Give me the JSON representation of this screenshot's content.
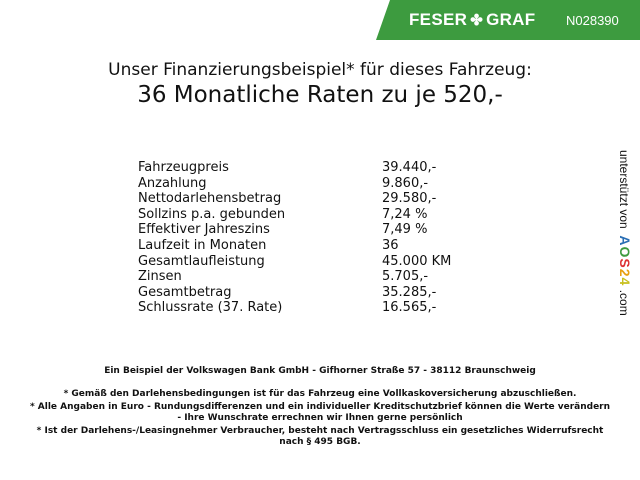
{
  "header": {
    "brand_left": "FESER",
    "brand_right": "GRAF",
    "brand_icon": "clover-icon",
    "vehicle_code": "N028390",
    "accent_color": "#3d9b3f"
  },
  "title": {
    "line1": "Unser Finanzierungsbeispiel* für dieses Fahrzeug:",
    "line2": "36 Monatliche Raten zu je 520,-"
  },
  "rows": [
    {
      "label": "Fahrzeugpreis",
      "value": "39.440,-"
    },
    {
      "label": "Anzahlung",
      "value": "9.860,-"
    },
    {
      "label": "Nettodarlehensbetrag",
      "value": "29.580,-"
    },
    {
      "label": "Sollzins p.a. gebunden",
      "value": "7,24 %"
    },
    {
      "label": "Effektiver Jahreszins",
      "value": "7,49 %"
    },
    {
      "label": "Laufzeit in Monaten",
      "value": "36"
    },
    {
      "label": "Gesamtlaufleistung",
      "value": "45.000 KM"
    },
    {
      "label": "Zinsen",
      "value": "5.705,-"
    },
    {
      "label": "Gesamtbetrag",
      "value": "35.285,-"
    },
    {
      "label": "Schlussrate (37. Rate)",
      "value": "16.565,-"
    }
  ],
  "side": {
    "prefix": "unterstützt von",
    "logo": "AOS24",
    ".com": ".com"
  },
  "footer": {
    "bank": "Ein Beispiel der Volkswagen Bank GmbH - Gifhorner Straße 57 - 38112 Braunschweig",
    "notes": [
      "* Gemäß den Darlehensbedingungen ist für das Fahrzeug eine Vollkaskoversicherung abzuschließen.",
      "* Alle Angaben in Euro - Rundungsdifferenzen und ein individueller Kreditschutzbrief können die Werte verändern",
      "- Ihre Wunschrate errechnen wir Ihnen gerne persönlich",
      "* Ist der Darlehens-/Leasingnehmer Verbraucher, besteht nach Vertragsschluss ein gesetzliches Widerrufsrecht",
      "nach § 495 BGB."
    ]
  }
}
